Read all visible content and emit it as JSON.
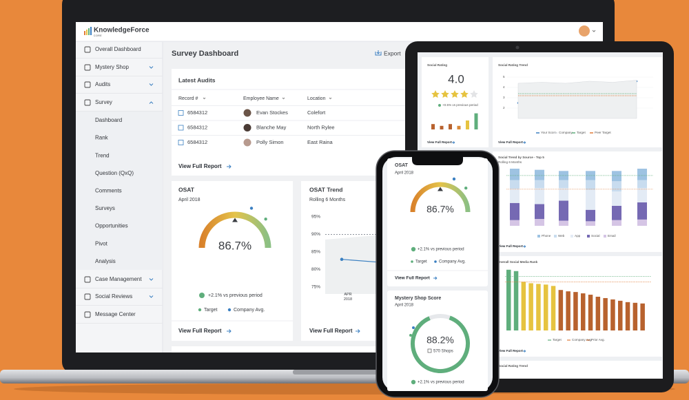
{
  "laptop": {
    "brand": "KnowledgeForce",
    "brand_tag": "CORE",
    "nav": [
      "Overall Dashboard",
      "Mystery Shop",
      "Audits",
      "Survey"
    ],
    "survey_menu": [
      "Dashboard",
      "Rank",
      "Trend",
      "Question (QxQ)",
      "Comments",
      "Surveys",
      "Opportunities",
      "Pivot",
      "Analysis"
    ],
    "nav_more": [
      "Case Management",
      "Social Reviews",
      "Message Center"
    ],
    "page_title": "Survey Dashboard",
    "export": "Export",
    "latest_audits": {
      "title": "Latest Audits",
      "columns": [
        "Record #",
        "Employee Name",
        "Location"
      ],
      "rows": [
        [
          "6584312",
          "Evan Stockes",
          "Colefort"
        ],
        [
          "6584312",
          "Blanche May",
          "North Rylee"
        ],
        [
          "6584312",
          "Polly Simon",
          "East Raina"
        ]
      ],
      "link": "View Full Report"
    },
    "osat": {
      "title": "OSAT",
      "date": "April 2018",
      "score": "86.7%",
      "change": "+2.1% vs previous period",
      "legend": [
        "Target",
        "Company Avg."
      ],
      "link": "View Full Report"
    },
    "osat_trend": {
      "title": "OSAT Trend",
      "subtitle": "Rolling 6 Months",
      "link": "View Full Report",
      "chart_data": {
        "type": "line",
        "ylim": [
          73,
          97
        ],
        "yticks": [
          {
            "value": 95,
            "label": "95%"
          },
          {
            "value": 90,
            "label": "90%"
          },
          {
            "value": 85,
            "label": "85%"
          },
          {
            "value": 80,
            "label": "80%"
          },
          {
            "value": 75,
            "label": "75%"
          }
        ],
        "categories": [
          "APR 2018",
          null
        ],
        "target": 90,
        "series": [
          {
            "color": "#3a7fc1",
            "values": [
              82.9,
              82.0
            ]
          }
        ]
      }
    }
  },
  "tablet": {
    "social_rating": {
      "title": "Social Rating",
      "score": "4.0",
      "change": "+0.5% vs previous period",
      "link": "View Full Report",
      "chart_data": {
        "type": "bar",
        "values": [
          3,
          2,
          3,
          2,
          5,
          9
        ],
        "colors": [
          "#b8622e",
          "#b8622e",
          "#b8622e",
          "#d98a3a",
          "#e6c340",
          "#5fae7c"
        ],
        "ylim": [
          0,
          10
        ]
      }
    },
    "social_rating_trend": {
      "title": "Social Rating Trend",
      "link": "View Full Report",
      "chart_data": {
        "type": "line",
        "ylim": [
          1,
          5
        ],
        "yticks": [
          5,
          4,
          3,
          2
        ],
        "series": [
          {
            "name": "Your Score",
            "color": "#3a7fc1",
            "values": [
              2.5,
              2.7,
              3.6,
              4.3,
              3.7,
              4.6
            ]
          },
          {
            "name": "Company",
            "color": "#d5d8dc",
            "values": [
              4.4,
              4.5,
              4.4,
              4.6,
              4.5,
              4.7
            ]
          },
          {
            "name": "Target",
            "color": "#5fae7c",
            "values": [
              3.4,
              3.4,
              3.4,
              3.4,
              3.4,
              3.4
            ]
          },
          {
            "name": "Peer Target",
            "color": "#e07b39",
            "values": [
              3.2,
              3.2,
              3.2,
              3.2,
              3.2,
              3.2
            ]
          }
        ]
      }
    },
    "social_trend_by_source": {
      "title": "Social Trend by Source - Top 5",
      "subtitle": "Rolling 6 Months",
      "link": "View Full Report",
      "chart_data": {
        "type": "stacked-bar",
        "ylim": [
          0,
          100
        ],
        "series": [
          {
            "name": "Phone",
            "color": "#9ec3e2",
            "values": [
              20,
              18,
              16,
              16,
              18,
              20
            ]
          },
          {
            "name": "Web",
            "color": "#c8dcef",
            "values": [
              15,
              14,
              14,
              17,
              18,
              14
            ]
          },
          {
            "name": "App",
            "color": "#e3ebf5",
            "values": [
              25,
              28,
              22,
              35,
              25,
              25
            ]
          },
          {
            "name": "Social",
            "color": "#7569b3",
            "values": [
              30,
              26,
              35,
              20,
              25,
              30
            ]
          },
          {
            "name": "Email",
            "color": "#d5c5e5",
            "values": [
              10,
              12,
              9,
              8,
              10,
              11
            ]
          }
        ],
        "target": 88,
        "company": 64
      }
    },
    "overall_social_media_rank": {
      "title": "Overall Social Media Rank",
      "link": "View Full Report",
      "chart_data": {
        "type": "bar",
        "ylim": [
          0,
          100
        ],
        "values": [
          90,
          88,
          72,
          70,
          69,
          68,
          66,
          60,
          58,
          57,
          55,
          53,
          50,
          48,
          46,
          44,
          42,
          41,
          40
        ],
        "colors": [
          "#5fae7c",
          "#5fae7c",
          "#e6c340",
          "#e6c340",
          "#e6c340",
          "#e6c340",
          "#e6c340",
          "#b8622e",
          "#b8622e",
          "#b8622e",
          "#b8622e",
          "#b8622e",
          "#b8622e",
          "#b8622e",
          "#b8622e",
          "#b8622e",
          "#b8622e",
          "#b8622e",
          "#b8622e"
        ],
        "legend": [
          {
            "name": "Target",
            "color": "#5fae7c",
            "value": 80
          },
          {
            "name": "Company Avg",
            "color": "#e07b39",
            "value": 72
          },
          {
            "name": "Prior Avg.",
            "color": "#b8622e"
          }
        ]
      }
    },
    "next_card_title": "Social Rating Trend"
  },
  "phone": {
    "osat": {
      "title": "OSAT",
      "date": "April 2018",
      "score": "86.7%",
      "change": "+2.1% vs previous period",
      "legend": [
        "Target",
        "Company Avg."
      ],
      "link": "View Full Report"
    },
    "mystery_shop": {
      "title": "Mystery Shop Score",
      "date": "April 2018",
      "score": "88.2%",
      "shops": "570 Shops",
      "change": "+2.1% vs previous period"
    }
  }
}
